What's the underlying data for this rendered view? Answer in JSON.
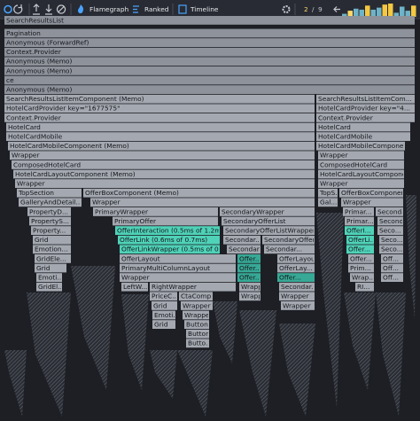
{
  "toolbar": {
    "tabs": [
      "Flamegraph",
      "Ranked",
      "Timeline"
    ],
    "commit_index": "2",
    "separator": "/",
    "commit_total": "9",
    "commit_bars": [
      3,
      6,
      8,
      7,
      11,
      7,
      9,
      12,
      13,
      4,
      10,
      6,
      11
    ]
  },
  "flamegraph": {
    "rows": [
      [
        "SearchResultsList"
      ],
      [
        "Pagination"
      ],
      [
        "Anonymous (ForwardRef)"
      ],
      [
        "Context.Provider"
      ],
      [
        "Anonymous (Memo)"
      ],
      [
        "Anonymous (Memo)"
      ],
      [
        "ce"
      ],
      [
        "Anonymous (Memo)"
      ],
      [
        "SearchResultsListItemComponent (Memo)",
        "SearchResultsListItemCom..."
      ],
      [
        "HotelCardProvider key=\"1677575\"",
        "HotelCardProvider key=\"4..."
      ],
      [
        "Context.Provider",
        "Context.Provider"
      ],
      [
        "HotelCard",
        "HotelCard"
      ],
      [
        "HotelCardMobile",
        "HotelCardMobile"
      ],
      [
        "HotelCardMobileComponent (Memo)",
        "HotelCardMobileCompone..."
      ],
      [
        "Wrapper",
        "Wrapper"
      ],
      [
        "ComposedHotelCard",
        "ComposedHotelCard"
      ],
      [
        "HotelCardLayoutComponent (Memo)",
        "HotelCardLayoutComponent"
      ],
      [
        "Wrapper",
        "Wrapper"
      ],
      [
        "TopSection",
        "OfferBoxComponent (Memo)",
        "TopS...",
        "OfferBoxComponent (Memo)"
      ],
      [
        "GalleryAndDetail...",
        "Wrapper",
        "Gal...",
        "Wrapper"
      ],
      [
        "PropertyD...",
        "PrimaryWrapper",
        "SecondaryWrapper",
        "Primar...",
        "Seconda..."
      ],
      [
        "PropertyS...",
        "PrimaryOffer",
        "SecondaryOfferList",
        "Primar...",
        "Seconda..."
      ],
      [
        "Property...",
        "OfferInteraction (0.5ms of 1.2ms)",
        "SecondaryOfferListWrapper",
        "OfferI...",
        "Seco..."
      ],
      [
        "Grid",
        "OfferLink (0.6ms of 0.7ms)",
        "Secondar...",
        "SecondaryOfferL...",
        "OfferLi...",
        "Seco..."
      ],
      [
        "Emotion...",
        "OfferLinkWrapper (0.5ms of 0.1...",
        "Secondar...",
        "Secondar...",
        "Offer...",
        "Seco..."
      ],
      [
        "GridEle...",
        "OfferLayout",
        "Offer...",
        "OfferLayout",
        "Offer...",
        "Off..."
      ],
      [
        "Grid",
        "PrimaryMultiColumnLayout",
        "Offer...",
        "OfferLay...",
        "Prim...",
        "Off..."
      ],
      [
        "Emoti...",
        "Wrapper",
        "Offer...",
        "Offer...",
        "Wrap...",
        "Off..."
      ],
      [
        "GridEl...",
        "LeftW...",
        "RightWrapper",
        "Wrapper",
        "Secondar...",
        "RI..."
      ],
      [
        "PriceC...",
        "CtaComp...",
        "Wrapper",
        "Wrapper"
      ],
      [
        "Grid",
        "Wrapper",
        "Wrapper"
      ],
      [
        "Emoti...",
        "Wrapper"
      ],
      [
        "Grid",
        "Button"
      ],
      [
        "Button"
      ],
      [
        "Butto..."
      ]
    ]
  }
}
